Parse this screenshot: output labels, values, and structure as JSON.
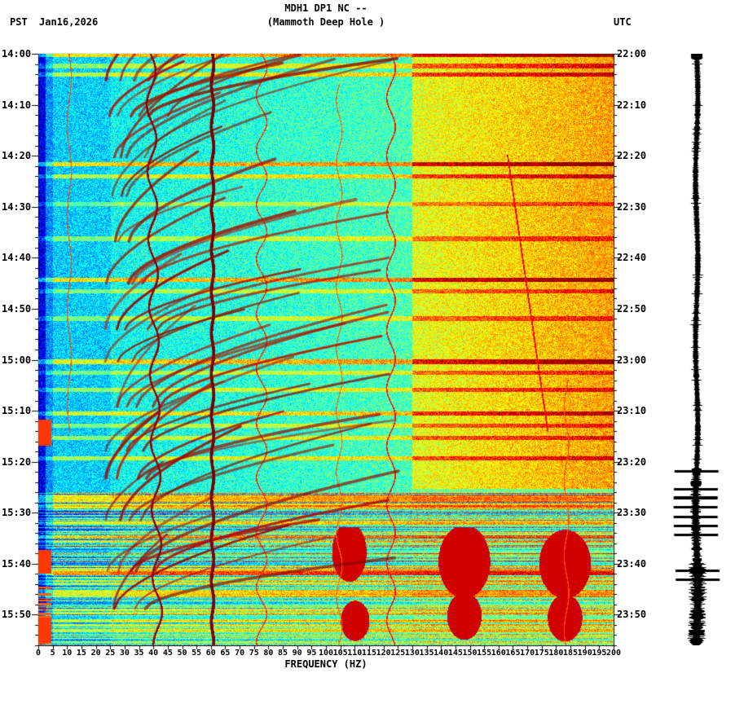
{
  "header": {
    "left_label": "PST",
    "date": "Jan16,2026",
    "title_line1": "MDH1 DP1 NC --",
    "title_line2": "(Mammoth Deep Hole )",
    "right_label": "UTC"
  },
  "chart_data": {
    "type": "heatmap",
    "subtype": "seismic-spectrogram",
    "station": "MDH1 DP1 NC",
    "station_name": "Mammoth Deep Hole",
    "xlabel": "FREQUENCY (HZ)",
    "x_range_hz": [
      0,
      200
    ],
    "x_tick_step_hz": 5,
    "x_tick_labels": [
      "0",
      "5",
      "10",
      "15",
      "20",
      "25",
      "30",
      "35",
      "40",
      "45",
      "50",
      "55",
      "60",
      "65",
      "70",
      "75",
      "80",
      "85",
      "90",
      "95",
      "100",
      "105",
      "110",
      "115",
      "120",
      "125",
      "130",
      "135",
      "140",
      "145",
      "150",
      "155",
      "160",
      "165",
      "170",
      "175",
      "180",
      "185",
      "190",
      "195",
      "200"
    ],
    "left_axis": {
      "timezone": "PST",
      "labels": [
        "14:00",
        "14:10",
        "14:20",
        "14:30",
        "14:40",
        "14:50",
        "15:00",
        "15:10",
        "15:20",
        "15:30",
        "15:40",
        "15:50"
      ]
    },
    "right_axis": {
      "timezone": "UTC",
      "labels": [
        "22:00",
        "22:10",
        "22:20",
        "22:30",
        "22:40",
        "22:50",
        "23:00",
        "23:10",
        "23:20",
        "23:30",
        "23:40",
        "23:50"
      ]
    },
    "time_span_minutes": 116,
    "major_tick_minutes": 10,
    "minor_tick_minutes": 2,
    "colormap": "jet",
    "colors": {
      "background": "#ffffff",
      "axis": "#000000",
      "trace": "#000000",
      "mains_hum_line": "#7f0000"
    },
    "notable_features": [
      "strong persistent 60 Hz mains-hum line",
      "wavy harmonic line near 40 Hz",
      "families of upward-sweeping harmonic arcs between ~25 and ~125 Hz",
      "elevated (orange) broadband energy above ~130 Hz until ~15:26 PST",
      "dense broadband horizontal bursts from ~15:26 PST to end of record",
      "dark high-amplitude blobs near 110/148/183 Hz around 15:40-15:50 PST"
    ]
  },
  "side_trace": {
    "type": "seismogram",
    "orientation": "vertical",
    "color": "#000000",
    "description": "time-aligned amplitude trace with clipped bursts after 15:26 PST"
  }
}
